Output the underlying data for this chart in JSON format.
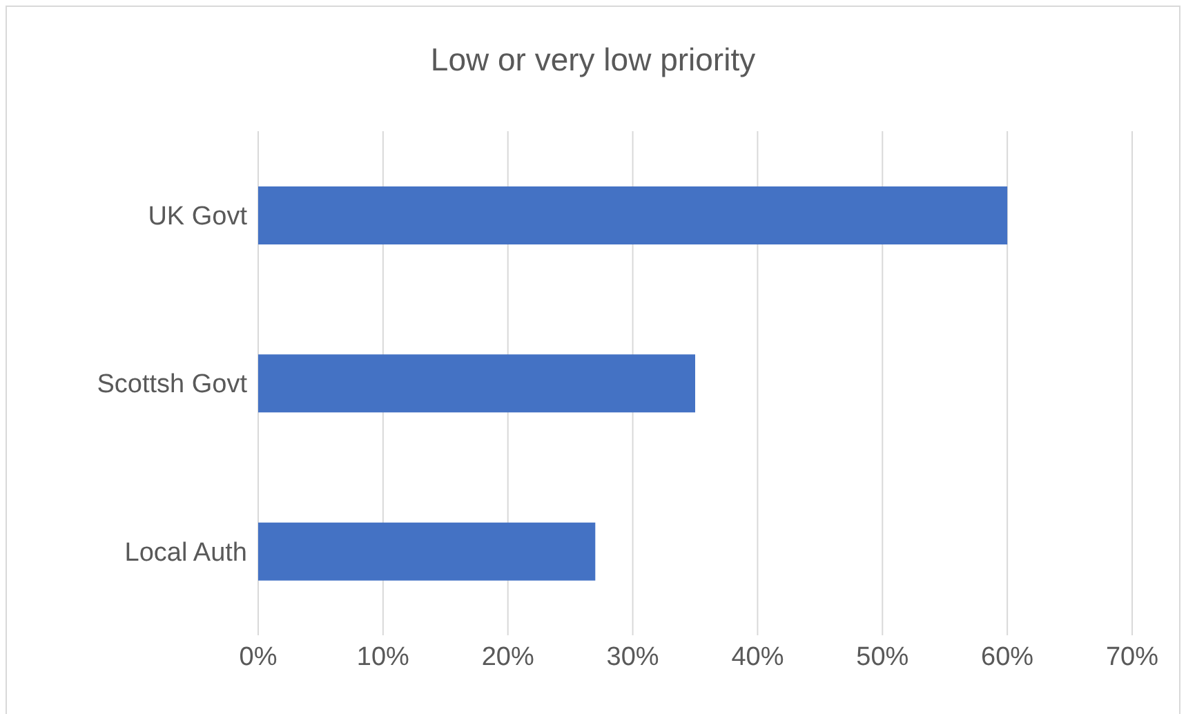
{
  "chart_data": {
    "type": "bar",
    "title": "Low or very low priority",
    "orientation": "horizontal",
    "categories": [
      "UK Govt",
      "Scottsh Govt",
      "Local Auth"
    ],
    "values": [
      60,
      35,
      27
    ],
    "color": "#4472c4",
    "xlim": [
      0,
      70
    ],
    "xticks": [
      {
        "value": 0,
        "label": "0%"
      },
      {
        "value": 10,
        "label": "10%"
      },
      {
        "value": 20,
        "label": "20%"
      },
      {
        "value": 30,
        "label": "30%"
      },
      {
        "value": 40,
        "label": "40%"
      },
      {
        "value": 50,
        "label": "50%"
      },
      {
        "value": 60,
        "label": "60%"
      },
      {
        "value": 70,
        "label": "70%"
      }
    ],
    "grid": "x"
  }
}
